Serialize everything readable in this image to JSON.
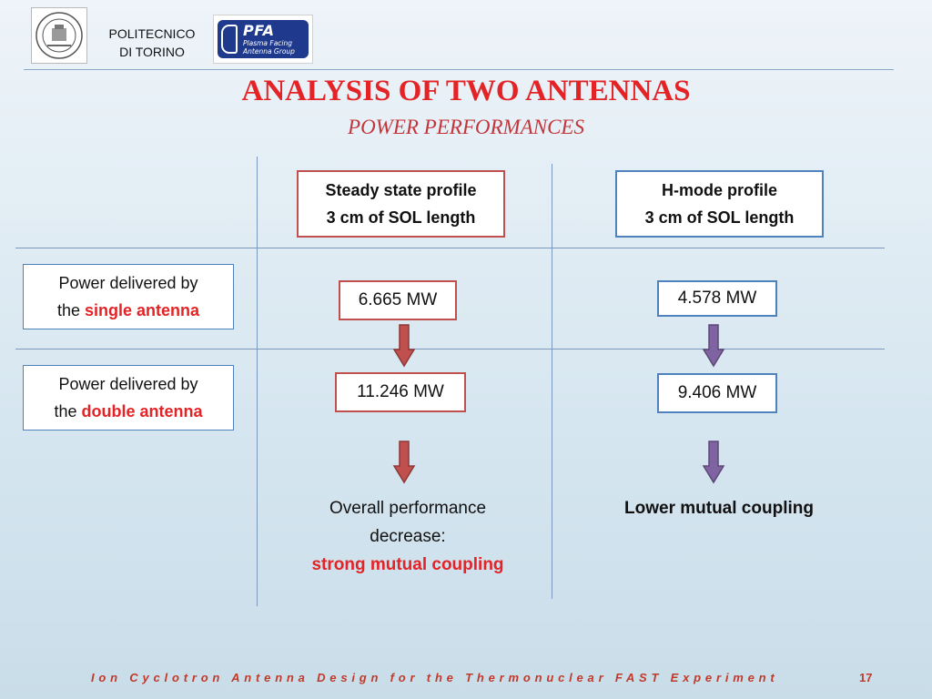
{
  "header": {
    "institution_line1": "POLITECNICO",
    "institution_line2": "DI TORINO",
    "seal_text": "POLITECNICO DI TORINO",
    "pfa_logo_title": "PFA",
    "pfa_logo_sub1": "Plasma Facing",
    "pfa_logo_sub2": "Antenna Group"
  },
  "title": "ANALYSIS OF TWO ANTENNAS",
  "subtitle": "POWER PERFORMANCES",
  "columns": [
    {
      "line1": "Steady state profile",
      "line2": "3 cm of SOL length"
    },
    {
      "line1": "H-mode profile",
      "line2": "3 cm of SOL length"
    }
  ],
  "rows": [
    {
      "prefix": "Power delivered by",
      "the": "the ",
      "highlight": "single antenna"
    },
    {
      "prefix": "Power delivered by",
      "the": "the ",
      "highlight": "double antenna"
    }
  ],
  "values": {
    "steady_single": "6.665 MW",
    "hmode_single": "4.578 MW",
    "steady_double": "11.246 MW",
    "hmode_double": "9.406 MW"
  },
  "conclusions": {
    "steady_line1": "Overall performance",
    "steady_line2": "decrease:",
    "steady_line3": "strong mutual coupling",
    "hmode": "Lower mutual coupling"
  },
  "footer": {
    "text": "Ion Cyclotron Antenna Design for the Thermonuclear FAST Experiment",
    "page": "17"
  },
  "colors": {
    "accent_red": "#e32326",
    "arrow_red": "#c0504d",
    "arrow_purple": "#8064a2",
    "border_blue": "#4f81bd"
  }
}
